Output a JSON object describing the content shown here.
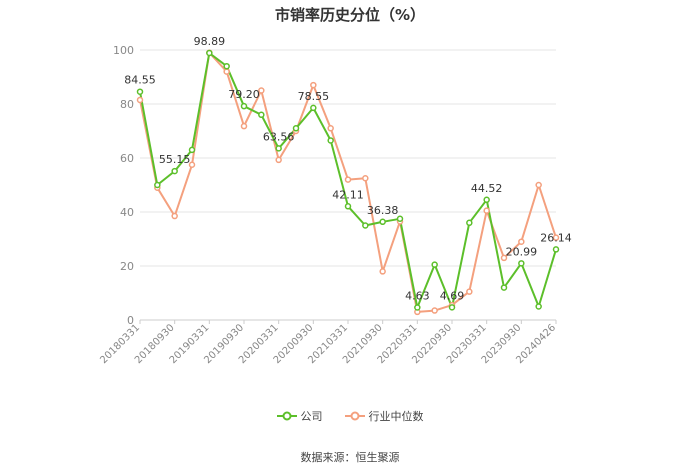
{
  "chart_data": {
    "type": "line",
    "title": "市销率历史分位（%）",
    "ylim": [
      0,
      100
    ],
    "yticks": [
      0,
      20,
      40,
      60,
      80,
      100
    ],
    "x": [
      "20180331",
      "",
      "20180930",
      "",
      "20190331",
      "",
      "20190930",
      "",
      "20200331",
      "",
      "20200930",
      "",
      "20210331",
      "",
      "20210930",
      "",
      "20220331",
      "",
      "20220930",
      "",
      "20230331",
      "",
      "20230930",
      "",
      "20240426"
    ],
    "xticks": [
      "20180331",
      "20180930",
      "20190331",
      "20190930",
      "20200331",
      "20200930",
      "20210331",
      "20210930",
      "20220331",
      "20220930",
      "20230331",
      "20230930",
      "20240426"
    ],
    "series": [
      {
        "name": "公司",
        "color": "#5cbf2a",
        "values": [
          84.55,
          50.0,
          55.15,
          63.0,
          98.89,
          94.0,
          79.2,
          76.0,
          63.56,
          71.0,
          78.55,
          66.5,
          42.11,
          35.0,
          36.38,
          37.5,
          4.63,
          20.5,
          4.69,
          36.0,
          44.52,
          12.0,
          20.99,
          5.0,
          26.14
        ],
        "labels": {
          "0": "84.55",
          "2": "55.15",
          "4": "98.89",
          "6": "79.20",
          "8": "63.56",
          "10": "78.55",
          "12": "42.11",
          "14": "36.38",
          "16": "4.63",
          "18": "4.69",
          "20": "44.52",
          "22": "20.99",
          "24": "26.14"
        }
      },
      {
        "name": "行业中位数",
        "color": "#f4a07e",
        "values": [
          81.5,
          49.0,
          38.5,
          57.5,
          99.0,
          92.0,
          71.8,
          85.0,
          59.3,
          70.0,
          87.0,
          71.0,
          52.0,
          52.5,
          18.0,
          36.5,
          3.0,
          3.5,
          5.5,
          10.5,
          40.5,
          23.0,
          29.0,
          50.0,
          30.5
        ]
      }
    ]
  },
  "legend": [
    {
      "label": "公司",
      "color": "#5cbf2a"
    },
    {
      "label": "行业中位数",
      "color": "#f4a07e"
    }
  ],
  "source": "数据来源：恒生聚源"
}
